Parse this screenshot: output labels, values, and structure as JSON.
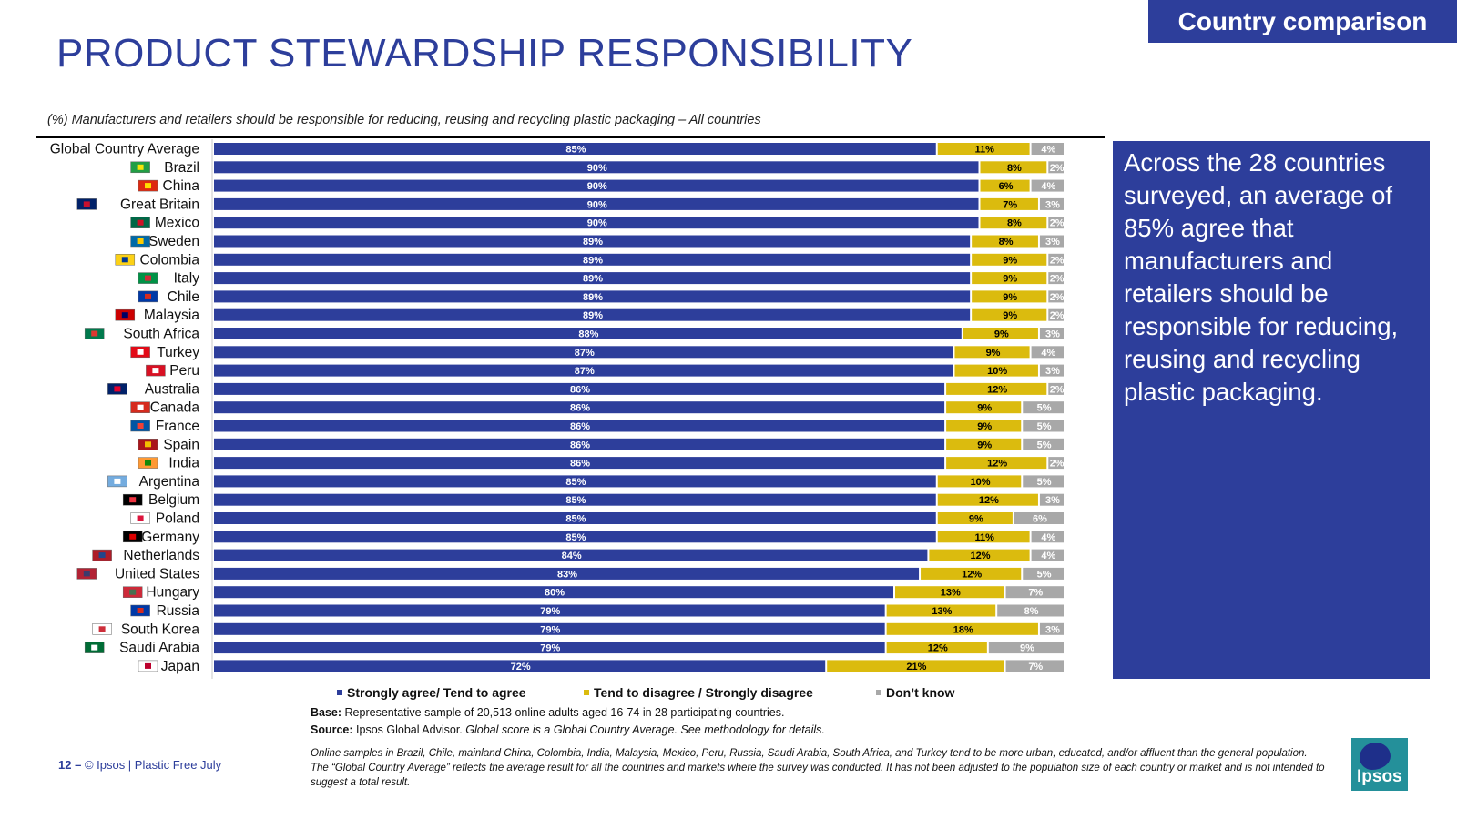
{
  "header": {
    "tag": "Country comparison",
    "title": "PRODUCT STEWARDSHIP RESPONSIBILITY",
    "question": "(%) Manufacturers and retailers should be responsible for reducing, reusing and recycling plastic packaging – All countries"
  },
  "panel": {
    "text": "Across the 28 countries surveyed, an average of 85% agree that manufacturers and retailers should be responsible for reducing, reusing and recycling plastic packaging."
  },
  "chart_data": {
    "type": "bar",
    "orientation": "horizontal",
    "stacked": true,
    "title": "",
    "xlabel": "",
    "ylabel": "",
    "xlim": [
      0,
      100
    ],
    "grid": false,
    "legend_position": "bottom",
    "categories": [
      "Global Country Average",
      "Brazil",
      "China",
      "Great Britain",
      "Mexico",
      "Sweden",
      "Colombia",
      "Italy",
      "Chile",
      "Malaysia",
      "South Africa",
      "Turkey",
      "Peru",
      "Australia",
      "Canada",
      "France",
      "Spain",
      "India",
      "Argentina",
      "Belgium",
      "Poland",
      "Germany",
      "Netherlands",
      "United States",
      "Hungary",
      "Russia",
      "South Korea",
      "Saudi Arabia",
      "Japan"
    ],
    "series": [
      {
        "name": "Strongly agree/ Tend to agree",
        "color": "#2d3e9b",
        "label_color": "#ffffff",
        "values": [
          85,
          90,
          90,
          90,
          90,
          89,
          89,
          89,
          89,
          89,
          88,
          87,
          87,
          86,
          86,
          86,
          86,
          86,
          85,
          85,
          85,
          85,
          84,
          83,
          80,
          79,
          79,
          79,
          72
        ]
      },
      {
        "name": "Tend to disagree / Strongly disagree",
        "color": "#dbbb0e",
        "label_color": "#000000",
        "values": [
          11,
          8,
          6,
          7,
          8,
          8,
          9,
          9,
          9,
          9,
          9,
          9,
          10,
          12,
          9,
          9,
          9,
          12,
          10,
          12,
          9,
          11,
          12,
          12,
          13,
          13,
          18,
          12,
          21
        ]
      },
      {
        "name": "Don’t know",
        "color": "#a8a8a8",
        "label_color": "#ffffff",
        "values": [
          4,
          2,
          4,
          3,
          2,
          3,
          2,
          2,
          2,
          2,
          3,
          4,
          3,
          2,
          5,
          5,
          5,
          2,
          5,
          3,
          6,
          4,
          4,
          5,
          7,
          8,
          3,
          9,
          7
        ]
      }
    ],
    "flags": [
      "",
      "flag-brazil",
      "flag-china",
      "flag-uk",
      "flag-mexico",
      "flag-sweden",
      "flag-colombia",
      "flag-italy",
      "flag-chile",
      "flag-malaysia",
      "flag-south-africa",
      "flag-turkey",
      "flag-peru",
      "flag-australia",
      "flag-canada",
      "flag-france",
      "flag-spain",
      "flag-india",
      "flag-argentina",
      "flag-belgium",
      "flag-poland",
      "flag-germany",
      "flag-netherlands",
      "flag-usa",
      "flag-hungary",
      "flag-russia",
      "flag-south-korea",
      "flag-saudi-arabia",
      "flag-japan"
    ]
  },
  "base": {
    "label": "Base:",
    "text": "Representative sample of 20,513 online adults aged 16-74 in 28 participating countries."
  },
  "source": {
    "label": "Source:",
    "text": "Ipsos Global Advisor.",
    "italic": "Global score is a Global Country Average. See methodology for details."
  },
  "notes": [
    "Online samples in Brazil, Chile, mainland China, Colombia, India, Malaysia, Mexico, Peru, Russia, Saudi Arabia, South Africa, and Turkey tend to be more urban, educated, and/or affluent than the general population.",
    "The “Global Country Average” reflects the average result for all the countries and markets where the survey was conducted. It has not been adjusted to the population size of each country or market and is not intended to suggest a total result."
  ],
  "footer": {
    "page": "12 –",
    "text": "© Ipsos | Plastic Free July"
  },
  "logo": {
    "text": "Ipsos"
  }
}
